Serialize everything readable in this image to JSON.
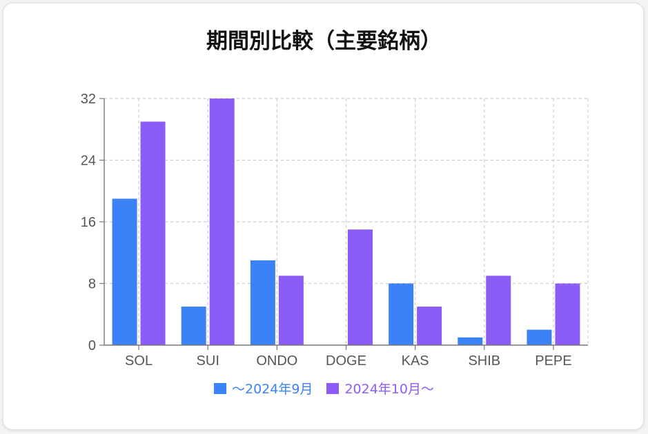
{
  "title": "期間別比較（主要銘柄）",
  "chart_data": {
    "type": "bar",
    "categories": [
      "SOL",
      "SUI",
      "ONDO",
      "DOGE",
      "KAS",
      "SHIB",
      "PEPE"
    ],
    "series": [
      {
        "name": "～2024年9月",
        "color": "#3b82f6",
        "values": [
          19,
          5,
          11,
          0,
          8,
          1,
          2
        ]
      },
      {
        "name": "2024年10月～",
        "color": "#8b5cf6",
        "values": [
          29,
          32,
          9,
          15,
          5,
          9,
          8
        ]
      }
    ],
    "yticks": [
      0,
      8,
      16,
      24,
      32
    ],
    "ylim": [
      0,
      32
    ],
    "grid": true,
    "grid_style": "dashed",
    "legend_position": "bottom-center"
  }
}
